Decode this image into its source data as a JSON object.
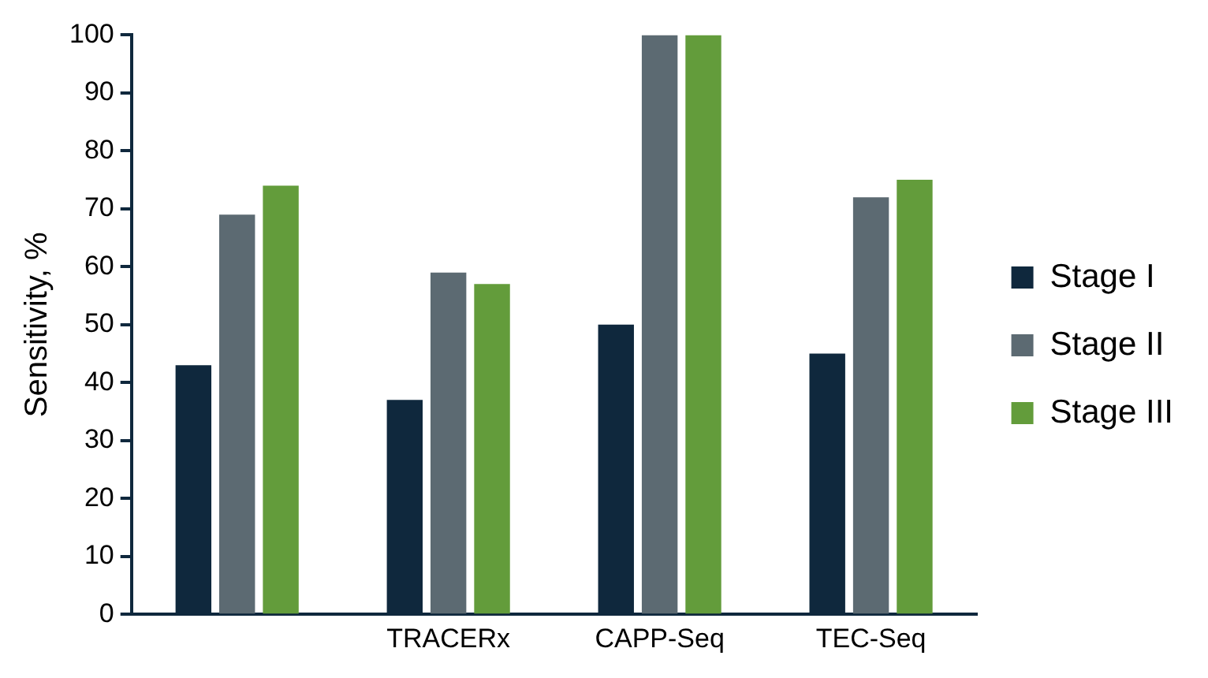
{
  "chart_data": {
    "type": "bar",
    "ylabel": "Sensitivity, %",
    "categories": [
      null,
      "TRACERx",
      "CAPP-Seq",
      "TEC-Seq"
    ],
    "series": [
      {
        "name": "Stage I",
        "color": "#0f283d",
        "values": [
          43,
          37,
          50,
          45
        ]
      },
      {
        "name": "Stage II",
        "color": "#5c6a72",
        "values": [
          69,
          59,
          100,
          72
        ]
      },
      {
        "name": "Stage III",
        "color": "#639c3b",
        "values": [
          74,
          57,
          100,
          75
        ]
      }
    ],
    "ylim": [
      0,
      100
    ],
    "yticks": [
      0,
      10,
      20,
      30,
      40,
      50,
      60,
      70,
      80,
      90,
      100
    ],
    "grid": false,
    "legend": "right"
  }
}
